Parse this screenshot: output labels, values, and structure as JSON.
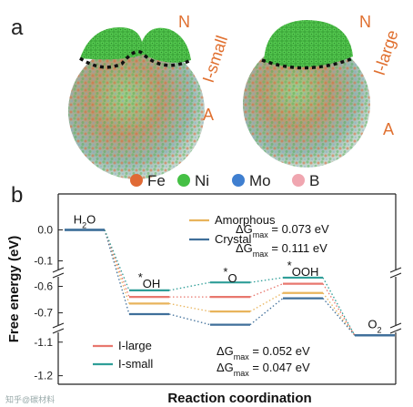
{
  "panel_a": {
    "label": "a",
    "small_particle": {
      "site": "N",
      "region": "A",
      "name": "I-small"
    },
    "large_particle": {
      "site": "N",
      "region": "A",
      "name": "I-large"
    },
    "elements": [
      {
        "symbol": "Fe",
        "color": "#e06a35"
      },
      {
        "symbol": "Ni",
        "color": "#45c045"
      },
      {
        "symbol": "Mo",
        "color": "#3f7fd0"
      },
      {
        "symbol": "B",
        "color": "#f0a6b0"
      }
    ]
  },
  "watermark": "知乎@碳材料",
  "chart_data": {
    "type": "line",
    "panel_label": "b",
    "xlabel": "Reaction coordination",
    "ylabel": "Free energy (eV)",
    "broken_axis": true,
    "y_segments": [
      {
        "range": [
          -0.05,
          0.05
        ],
        "ticks": [
          0.0
        ]
      },
      {
        "range": [
          -0.13,
          -0.07
        ],
        "ticks": [
          -0.1
        ]
      },
      {
        "range": [
          -0.76,
          -0.55
        ],
        "ticks": [
          -0.6,
          -0.7
        ]
      },
      {
        "range": [
          -1.22,
          -1.06
        ],
        "ticks": [
          -1.1,
          -1.2
        ]
      }
    ],
    "tick_labels": [
      "0.0",
      "-0.1",
      "-0.6",
      "-0.7",
      "-1.1",
      "-1.2"
    ],
    "states": [
      "H2O",
      "*OH",
      "*O",
      "*OOH",
      "O2"
    ],
    "state_display": [
      {
        "main": "H",
        "sub": "2",
        "post": "O"
      },
      {
        "pre": "*",
        "main": "OH"
      },
      {
        "pre": "*",
        "main": "O"
      },
      {
        "pre": "*",
        "main": "OOH"
      },
      {
        "main": "O",
        "sub": "2"
      }
    ],
    "series": [
      {
        "name": "Amorphous",
        "color": "#e8b45c",
        "values": [
          0.0,
          -0.665,
          -0.695,
          -0.625,
          -1.08
        ]
      },
      {
        "name": "Crystal",
        "color": "#3f6f9a",
        "values": [
          0.0,
          -0.705,
          -0.745,
          -0.645,
          -1.08
        ]
      },
      {
        "name": "I-large",
        "color": "#e8776e",
        "values": [
          0.0,
          -0.64,
          -0.64,
          -0.59,
          -1.08
        ]
      },
      {
        "name": "I-small",
        "color": "#2f9e98",
        "values": [
          0.0,
          -0.615,
          -0.585,
          -0.567,
          -1.08
        ]
      }
    ],
    "shared_color": "#3f6f9a",
    "annotations": [
      {
        "series": "Amorphous",
        "prefix": "ΔG",
        "sub": "max",
        "text": " = 0.073 eV"
      },
      {
        "series": "Crystal",
        "prefix": "ΔG",
        "sub": "max",
        "text": " = 0.111 eV"
      },
      {
        "series": "I-large",
        "prefix": "ΔG",
        "sub": "max",
        "text": " = 0.052 eV"
      },
      {
        "series": "I-small",
        "prefix": "ΔG",
        "sub": "max",
        "text": " = 0.047 eV"
      }
    ]
  }
}
